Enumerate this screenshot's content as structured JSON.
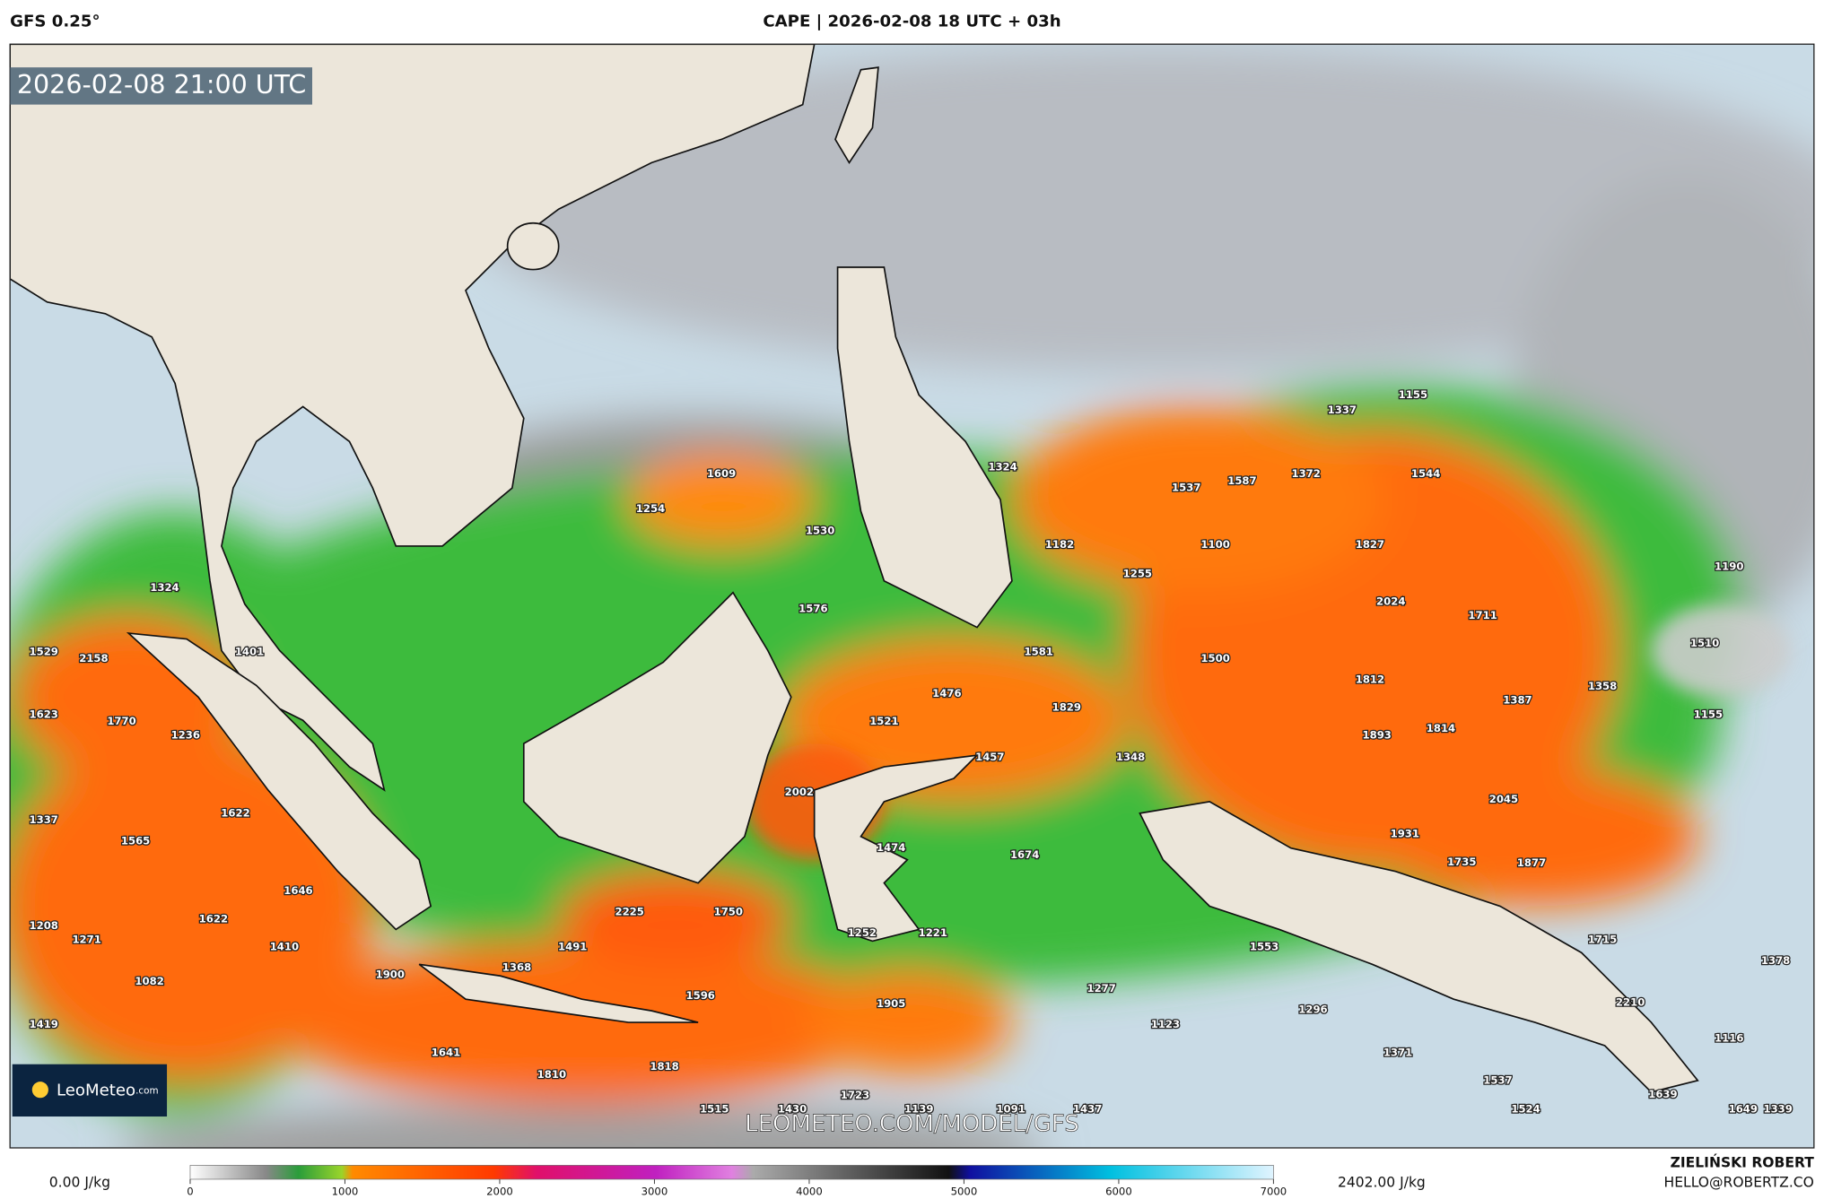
{
  "header": {
    "model": "GFS 0.25°",
    "title": "CAPE | 2026-02-08 18 UTC + 03h"
  },
  "map": {
    "valid_time": "2026-02-08 21:00 UTC",
    "watermark": "LEOMETEO.COM/MODEL/GFS",
    "logo": "LeoMeteo",
    "logo_suffix": ".com",
    "cape_labels": [
      1337,
      1155,
      1609,
      1324,
      1537,
      1587,
      1372,
      1544,
      1254,
      1530,
      1182,
      1100,
      1827,
      1255,
      1190,
      1324,
      2024,
      1711,
      1576,
      1529,
      2158,
      1401,
      1581,
      1500,
      1510,
      1812,
      1358,
      1476,
      1387,
      1623,
      1770,
      1236,
      1521,
      1829,
      1155,
      1893,
      1814,
      1457,
      1348,
      2002,
      2045,
      1622,
      1337,
      1565,
      1931,
      1474,
      1674,
      1735,
      1877,
      1646,
      2225,
      1750,
      1622,
      1208,
      1271,
      1410,
      1491,
      1252,
      1221,
      1715,
      1553,
      1378,
      1368,
      1900,
      1082,
      1596,
      1905,
      1277,
      2210,
      1296,
      1123,
      1419,
      1116,
      1641,
      1371,
      1810,
      1818,
      1537,
      1723,
      1639,
      1515,
      1430,
      1139,
      1091,
      1437,
      1524,
      1649,
      1339
    ]
  },
  "legend": {
    "min": "0.00 J/kg",
    "max": "2402.00 J/kg",
    "ticks": [
      0,
      1000,
      2000,
      3000,
      4000,
      5000,
      6000,
      7000
    ]
  },
  "footer": {
    "author": "ZIELIŃSKI ROBERT",
    "email": "HELLO@ROBERTZ.CO"
  }
}
